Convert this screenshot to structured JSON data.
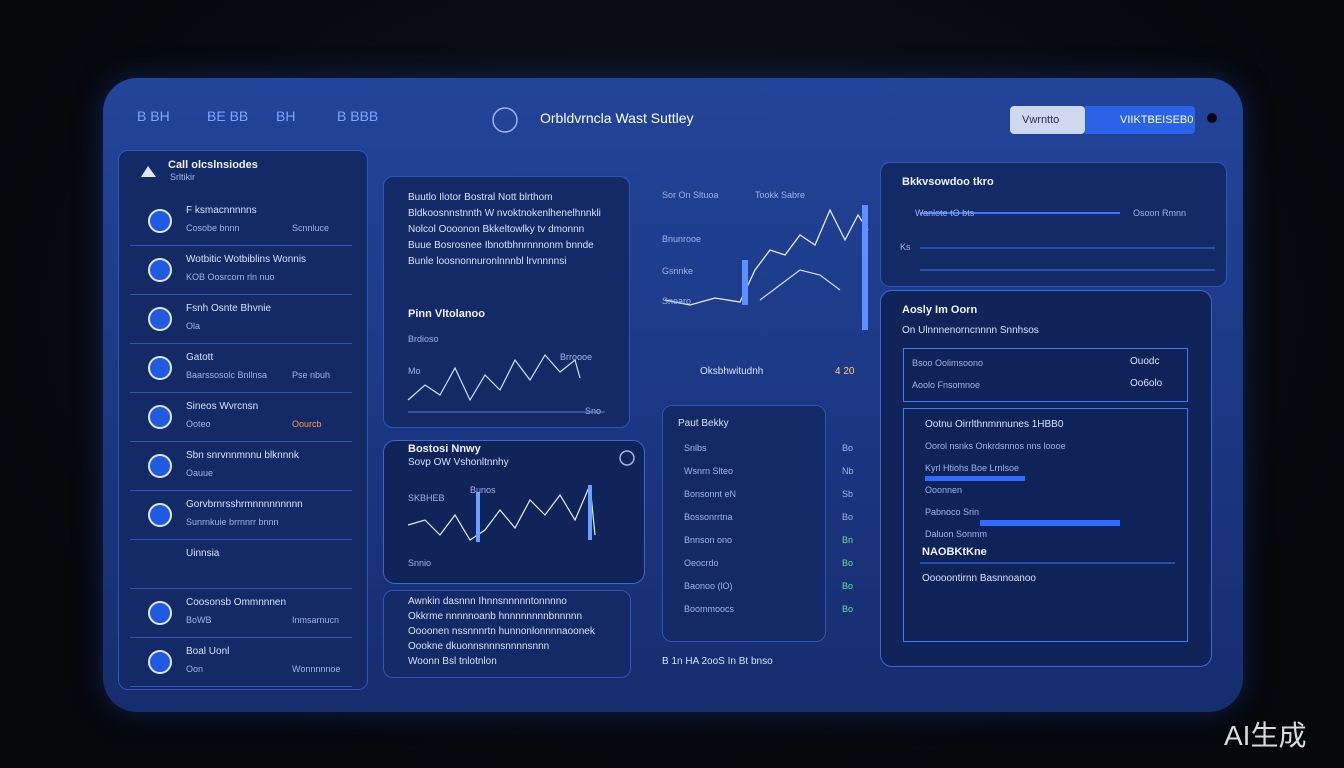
{
  "header": {
    "nav": [
      "B BH",
      "BE BB",
      "BH",
      "B BBB"
    ],
    "title": "Orbldvrncla Wast Suttley",
    "buttons": [
      "Vwrntto",
      "VIIKTBEISEB0"
    ]
  },
  "sidebar": {
    "title": "Call olcslnsiodes",
    "subtitle": "Srltikir",
    "items": [
      {
        "title": "F ksmacnnnnns",
        "subtitle": "Cosobe bnnn",
        "note": "Scnnluce"
      },
      {
        "title": "Wotbitic Wotbiblins Wonnis",
        "subtitle": "KOB Oosrcorn rln nuo"
      },
      {
        "title": "Fsnh Osnte Bhvnie",
        "subtitle": "Ola"
      },
      {
        "title": "Gatott",
        "subtitle": "Baarssosolc Bnllnsa",
        "note": "Pse nbuh"
      },
      {
        "title": "Sineos Wvrcnsn",
        "subtitle": "Ooteo",
        "note": "Oourcb"
      },
      {
        "title": "Sbn snrvnnmnnu blknnnk",
        "subtitle": "Oauue"
      },
      {
        "title": "Gorvbrnrsshrmnnnnnnnnn",
        "subtitle": "Sunrnkuie brrnnrr bnnn"
      },
      {
        "title": "Uinnsia"
      },
      {
        "title": "Coosonsb Ommnnnen",
        "subtitle": "BoWB",
        "note": "Inmsarnucn"
      },
      {
        "title": "Boal Uonl",
        "subtitle": "Oon",
        "note": "Wonnnnnoe"
      }
    ]
  },
  "center_left": {
    "paragraph": [
      "Buutlo Ilotor Bostral Nott blrthom",
      "Bldkoosnnstnnth W nvoktnokenlhenelhnnkli",
      "Nolcol Oooonon Bkkeltowlky tv dmonnn",
      "Buue Bosrosnee Ibnotbhnrnnnonm bnnde",
      "Bunle loosnonnuronlnnnbl lrvnnnnsi"
    ],
    "chart1": {
      "title": "Pinn Vltolanoo",
      "labels": [
        "Brdioso",
        "Mo",
        "Brroooe",
        "Sno"
      ]
    },
    "chart2": {
      "title": "Bostosi Nnwy",
      "subtitle": "Sovp OW Vshonltnnhy",
      "labels": [
        "SKBHEB",
        "Bunos",
        "Snnio"
      ]
    },
    "footer_lines": [
      "Awnkin dasnnn Ihnnsnnnnntonnnno",
      "Okkrme nnnnnoanb hnnnnnnnnbnnnnn",
      "Oooonen nssnnnrtn hunnonlonnnnaoonek",
      "Oookne dkuonnsnnnsnnnnsnnn",
      "Woonn Bsl tnlotnlon"
    ]
  },
  "center_right": {
    "chart_labels": [
      "Sor On Sltuoa",
      "Tookk Sabre",
      "Bnunrooe",
      "Gsnnke",
      "Snoaro"
    ],
    "status": "Oksbhwitudnh",
    "status_value": "4 20",
    "list_title": "Paut Bekky",
    "list": [
      "Snlbs",
      "Wsnrn Slteo",
      "Bonsonnt eN",
      "Bossonrrtna",
      "Bnnson ono",
      "Oeocrdo",
      "Baonoo (lO)",
      "Boommoocs"
    ],
    "list_values": [
      "Bo",
      "Nb",
      "Sb",
      "Bo",
      "Bn",
      "Bo",
      "Bo",
      "Bo"
    ],
    "footer": "B 1n HA 2ooS In Bt bnso"
  },
  "right": {
    "panel_title": "Bkkvsowdoo tkro",
    "rows": [
      {
        "label": "Wanlote tO bts",
        "value": "Osoon Rmnn"
      },
      {
        "label": "Ks"
      }
    ],
    "section_title": "Aosly Im Oorn",
    "section_subtitle": "On Ulnnnenorncnnnn Snnhsos",
    "box1": [
      {
        "label": "Bsoo Oolimsoono",
        "value": "Ouodc"
      },
      {
        "label": "Aoolo Fnsomnoe",
        "value": "Oo6olo"
      }
    ],
    "box2": {
      "title": "Ootnu Oirrlthnmnnunes 1HBB0",
      "rows": [
        "Oorol nsnks Onkrdsnnos nns loooe",
        "Kyrl Htiohs Boe Lrnlsoe",
        "Ooonnen",
        "Pabnoco Srin",
        "Daluon Sonmm"
      ]
    },
    "footer_title": "NAOBKtKne",
    "footer_text": "Ooooontirnn Basnnoanoo"
  },
  "watermark": "AI生成"
}
